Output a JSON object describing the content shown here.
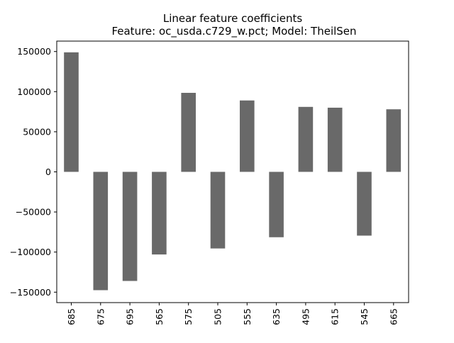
{
  "chart_data": {
    "type": "bar",
    "title": "Linear feature coefficients",
    "subtitle": "Feature: oc_usda.c729_w.pct; Model: TheilSen",
    "xlabel": "",
    "ylabel": "",
    "categories": [
      "685",
      "675",
      "695",
      "565",
      "575",
      "505",
      "555",
      "635",
      "495",
      "615",
      "545",
      "665"
    ],
    "values": [
      149000,
      -147500,
      -136000,
      -103000,
      98500,
      -95500,
      89000,
      -81500,
      81000,
      80000,
      -79500,
      78000
    ],
    "ylim": [
      -163000,
      163000
    ],
    "yticks": [
      -150000,
      -100000,
      -50000,
      0,
      50000,
      100000,
      150000
    ],
    "ytick_labels": [
      "−150000",
      "−100000",
      "−50000",
      "0",
      "50000",
      "100000",
      "150000"
    ],
    "grid": false,
    "legend": "none",
    "bar_color": "#696969"
  }
}
